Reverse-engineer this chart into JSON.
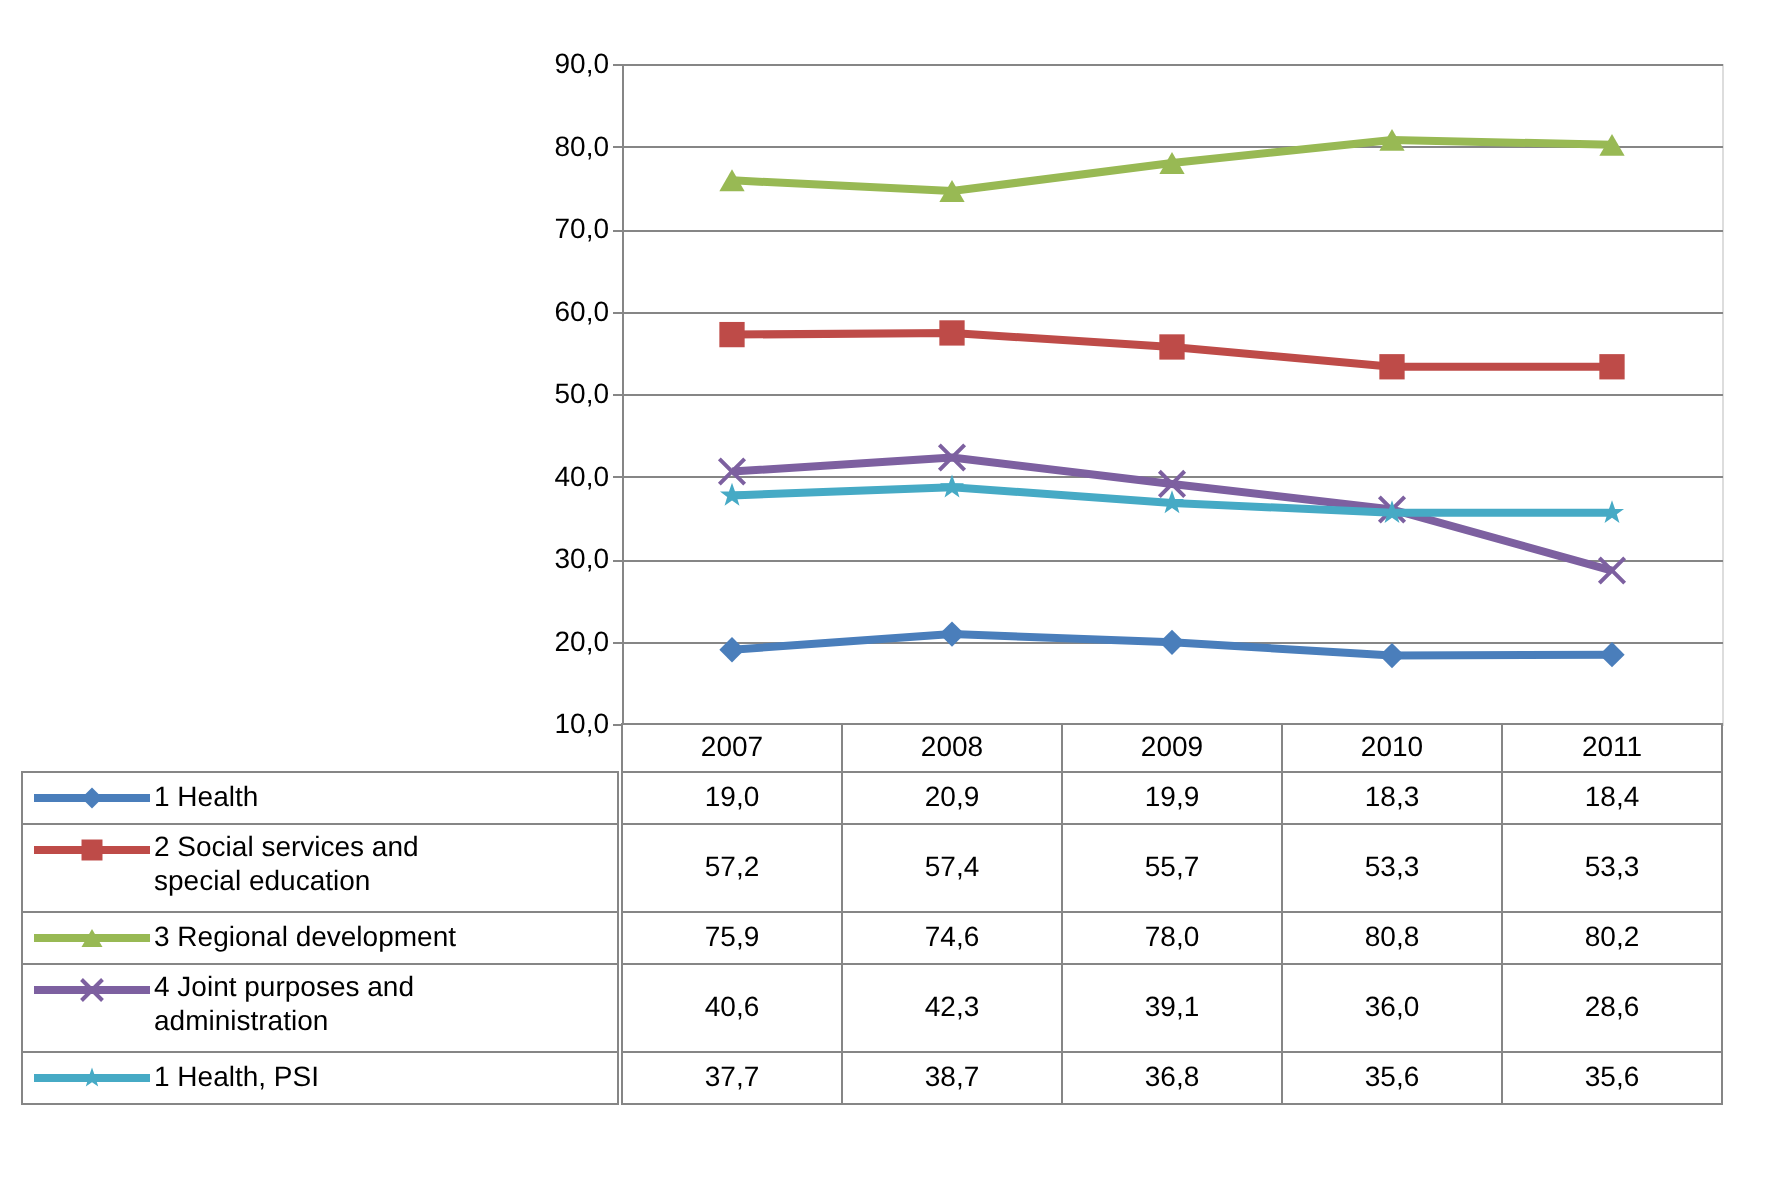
{
  "chart_data": {
    "type": "line",
    "categories": [
      "2007",
      "2008",
      "2009",
      "2010",
      "2011"
    ],
    "ylim": [
      10,
      90
    ],
    "yticks": [
      {
        "value": 10,
        "label": "10,0"
      },
      {
        "value": 20,
        "label": "20,0"
      },
      {
        "value": 30,
        "label": "30,0"
      },
      {
        "value": 40,
        "label": "40,0"
      },
      {
        "value": 50,
        "label": "50,0"
      },
      {
        "value": 60,
        "label": "60,0"
      },
      {
        "value": 70,
        "label": "70,0"
      },
      {
        "value": 80,
        "label": "80,0"
      },
      {
        "value": 90,
        "label": "90,0"
      }
    ],
    "grid": "y",
    "legend": "bottom",
    "line_style": "solid",
    "series": [
      {
        "name": "1 Health",
        "color": "#4a7ebb",
        "marker": "diamond",
        "values": [
          19.0,
          20.9,
          19.9,
          18.3,
          18.4
        ],
        "value_labels": [
          "19,0",
          "20,9",
          "19,9",
          "18,3",
          "18,4"
        ]
      },
      {
        "name": "2 Social services and special education",
        "color": "#be4b48",
        "marker": "square",
        "values": [
          57.2,
          57.4,
          55.7,
          53.3,
          53.3
        ],
        "value_labels": [
          "57,2",
          "57,4",
          "55,7",
          "53,3",
          "53,3"
        ]
      },
      {
        "name": "3 Regional development",
        "color": "#98b954",
        "marker": "triangle",
        "values": [
          75.9,
          74.6,
          78.0,
          80.8,
          80.2
        ],
        "value_labels": [
          "75,9",
          "74,6",
          "78,0",
          "80,8",
          "80,2"
        ]
      },
      {
        "name": "4 Joint purposes and administration",
        "color": "#7d60a0",
        "marker": "cross",
        "values": [
          40.6,
          42.3,
          39.1,
          36.0,
          28.6
        ],
        "value_labels": [
          "40,6",
          "42,3",
          "39,1",
          "36,0",
          "28,6"
        ]
      },
      {
        "name": "1 Health, PSI",
        "color": "#46aac5",
        "marker": "star",
        "values": [
          37.7,
          38.7,
          36.8,
          35.6,
          35.6
        ],
        "value_labels": [
          "37,7",
          "38,7",
          "36,8",
          "35,6",
          "35,6"
        ]
      }
    ]
  }
}
